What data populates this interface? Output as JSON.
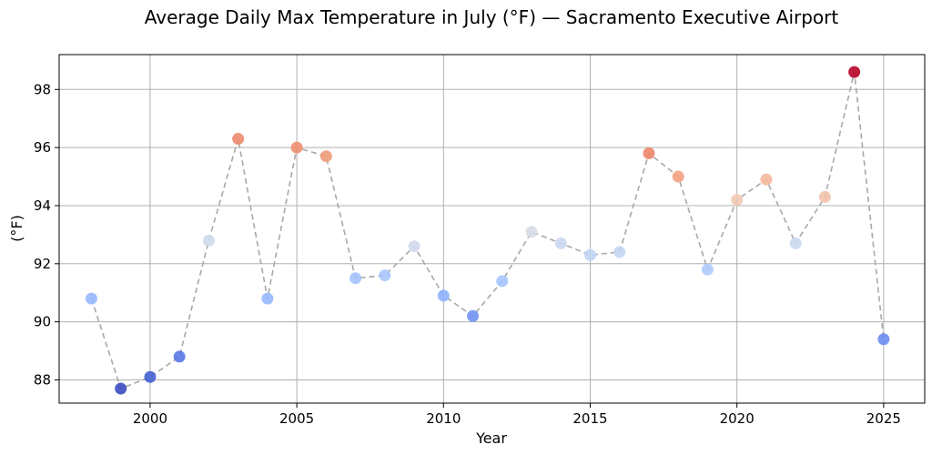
{
  "chart_data": {
    "type": "scatter",
    "title": "Average Daily Max Temperature in July (°F) — Sacramento Executive Airport",
    "xlabel": "Year",
    "ylabel": "(°F)",
    "xlim": [
      1996.9,
      2026.4
    ],
    "ylim": [
      87.2,
      99.2
    ],
    "xticks": [
      2000,
      2005,
      2010,
      2015,
      2020,
      2025
    ],
    "yticks": [
      88,
      90,
      92,
      94,
      96,
      98
    ],
    "grid": true,
    "connector": "dashed gray line",
    "colormap": "coolwarm",
    "x": [
      1998,
      1999,
      2000,
      2001,
      2002,
      2003,
      2004,
      2005,
      2006,
      2007,
      2008,
      2009,
      2010,
      2011,
      2012,
      2013,
      2014,
      2015,
      2016,
      2017,
      2018,
      2019,
      2020,
      2021,
      2022,
      2023,
      2024,
      2025
    ],
    "y": [
      90.8,
      87.7,
      88.1,
      88.8,
      92.8,
      96.3,
      90.8,
      96.0,
      95.7,
      91.5,
      91.6,
      92.6,
      90.9,
      90.2,
      91.4,
      93.1,
      92.7,
      92.3,
      92.4,
      95.8,
      95.0,
      91.8,
      94.2,
      94.9,
      92.7,
      94.3,
      98.6,
      89.4
    ],
    "colors": [
      "#97b8ff",
      "#3b4cc0",
      "#4461d2",
      "#5977e3",
      "#cdd9ec",
      "#ec8b6e",
      "#97b8ff",
      "#ee8e70",
      "#f09b7a",
      "#a5c3fe",
      "#a9c6fd",
      "#cfdaea",
      "#8fb1fe",
      "#7194f2",
      "#a6c4fe",
      "#d6dce4",
      "#c9d7ef",
      "#c0d4f5",
      "#c4d5f3",
      "#ee8468",
      "#f5a183",
      "#b0cbfc",
      "#f2c9b4",
      "#f4b89c",
      "#cad8ee",
      "#f2c2a9",
      "#b40426",
      "#6b8df0"
    ]
  }
}
